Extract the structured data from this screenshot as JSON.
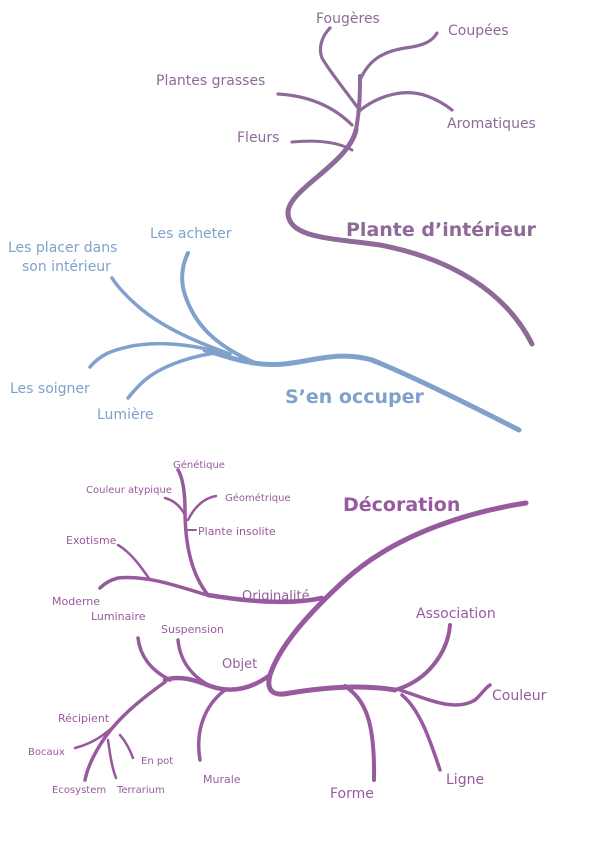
{
  "colors": {
    "plants": "#8e6a98",
    "plants_light": "#a585b0",
    "care": "#7fa1cc",
    "deco": "#985a9e"
  },
  "mindmap_plants": {
    "title": "Plante d’intérieur",
    "items": {
      "fougeres": "Fougères",
      "coupees": "Coupées",
      "plantes_grasses": "Plantes grasses",
      "aromatiques": "Aromatiques",
      "fleurs": "Fleurs"
    }
  },
  "mindmap_care": {
    "title": "S’en occuper",
    "items": {
      "acheter": "Les acheter",
      "placer_line1": "Les placer dans",
      "placer_line2": "son intérieur",
      "soigner": "Les soigner",
      "lumiere": "Lumière"
    }
  },
  "mindmap_deco": {
    "title": "Décoration",
    "originalite": {
      "label": "Originalité",
      "genetique": "Génétique",
      "couleur_atypique": "Couleur atypique",
      "geometrique": "Géométrique",
      "plante_insolite": "Plante insolite",
      "exotisme": "Exotisme",
      "moderne": "Moderne"
    },
    "objet": {
      "label": "Objet",
      "luminaire": "Luminaire",
      "suspension": "Suspension",
      "recipient": "Récipient",
      "bocaux": "Bocaux",
      "en_pot": "En pot",
      "ecosystem": "Ecosystem",
      "terrarium": "Terrarium",
      "murale": "Murale"
    },
    "association": {
      "label": "Association",
      "couleur": "Couleur",
      "ligne": "Ligne"
    },
    "forme": "Forme"
  }
}
